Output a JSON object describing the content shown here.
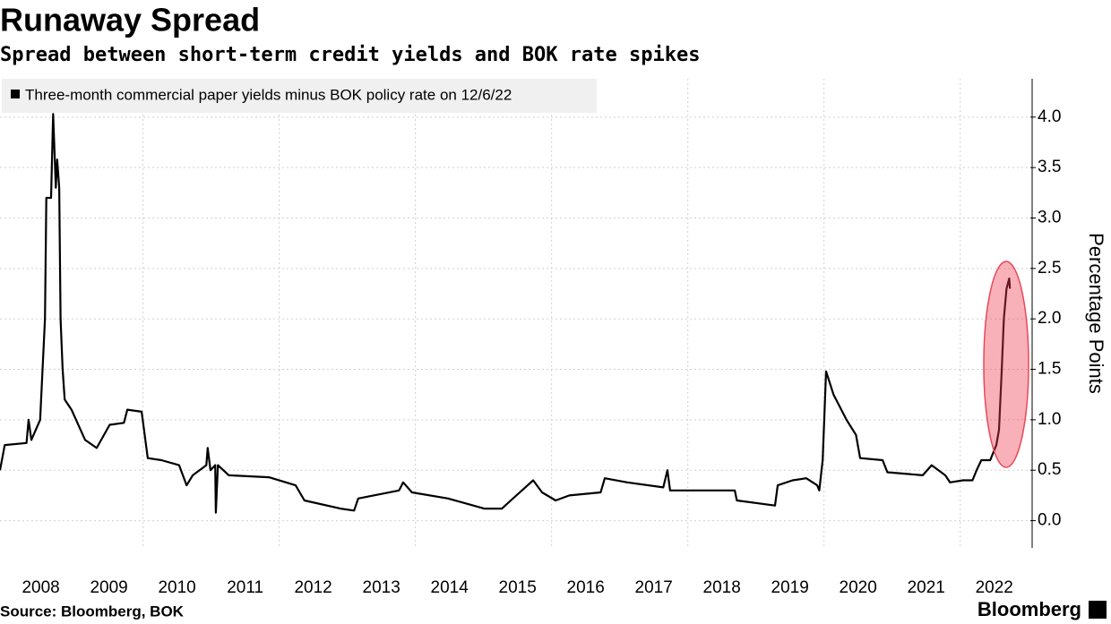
{
  "chart_data": {
    "type": "line",
    "title": "Runaway Spread",
    "subtitle": "Spread between short-term credit yields and BOK rate spikes",
    "y_axis_label": "Percentage Points",
    "source": "Source: Bloomberg, BOK",
    "brand": "Bloomberg",
    "x": [
      2007.9,
      2007.97,
      2008.29,
      2008.32,
      2008.36,
      2008.49,
      2008.56,
      2008.58,
      2008.65,
      2008.68,
      2008.72,
      2008.74,
      2008.77,
      2008.79,
      2008.82,
      2008.85,
      2008.95,
      2009.15,
      2009.32,
      2009.51,
      2009.72,
      2009.77,
      2009.98,
      2010.07,
      2010.27,
      2010.53,
      2010.64,
      2010.73,
      2010.93,
      2010.95,
      2010.99,
      2011.06,
      2011.07,
      2011.1,
      2011.26,
      2011.85,
      2012.24,
      2012.37,
      2012.9,
      2013.1,
      2013.16,
      2013.76,
      2013.82,
      2013.95,
      2014.48,
      2015.01,
      2015.27,
      2015.4,
      2015.73,
      2015.86,
      2016.06,
      2016.26,
      2016.72,
      2016.78,
      2017.11,
      2017.64,
      2017.7,
      2017.74,
      2018.69,
      2018.72,
      2019.28,
      2019.32,
      2019.54,
      2019.74,
      2019.9,
      2019.93,
      2019.98,
      2020.03,
      2020.14,
      2020.33,
      2020.47,
      2020.53,
      2020.86,
      2020.93,
      2021.45,
      2021.58,
      2021.78,
      2021.85,
      2022.04,
      2022.18,
      2022.24,
      2022.31,
      2022.44,
      2022.53,
      2022.57,
      2022.61,
      2022.64,
      2022.68,
      2022.72,
      2022.73
    ],
    "series": [
      {
        "name": "Three-month commercial paper yields minus BOK policy rate on 12/6/22",
        "color": "#000000",
        "values": [
          0.5,
          0.75,
          0.77,
          1.0,
          0.8,
          1.0,
          2.0,
          3.2,
          3.2,
          4.03,
          3.3,
          3.58,
          3.3,
          2.0,
          1.5,
          1.2,
          1.1,
          0.8,
          0.72,
          0.95,
          0.97,
          1.1,
          1.08,
          0.62,
          0.6,
          0.55,
          0.35,
          0.45,
          0.55,
          0.72,
          0.5,
          0.55,
          0.08,
          0.55,
          0.45,
          0.43,
          0.35,
          0.2,
          0.12,
          0.1,
          0.22,
          0.3,
          0.38,
          0.28,
          0.22,
          0.12,
          0.12,
          0.2,
          0.4,
          0.28,
          0.2,
          0.25,
          0.28,
          0.42,
          0.38,
          0.33,
          0.5,
          0.3,
          0.3,
          0.2,
          0.15,
          0.35,
          0.4,
          0.42,
          0.35,
          0.3,
          0.6,
          1.48,
          1.25,
          1.0,
          0.85,
          0.62,
          0.6,
          0.48,
          0.45,
          0.55,
          0.45,
          0.38,
          0.4,
          0.4,
          0.5,
          0.6,
          0.6,
          0.75,
          0.9,
          1.5,
          2.0,
          2.3,
          2.4,
          2.3
        ]
      }
    ],
    "xlim": [
      2007.9,
      2023.03
    ],
    "xticks": [
      2008,
      2009,
      2010,
      2011,
      2012,
      2013,
      2014,
      2015,
      2016,
      2017,
      2018,
      2019,
      2020,
      2021,
      2022
    ],
    "ylim": [
      -0.27,
      4.38
    ],
    "yticks": [
      {
        "value": 0,
        "label": "0.0"
      },
      {
        "value": 0.5,
        "label": "0.5"
      },
      {
        "value": 1,
        "label": "1.0"
      },
      {
        "value": 1.5,
        "label": "1.5"
      },
      {
        "value": 2,
        "label": "2.0"
      },
      {
        "value": 2.5,
        "label": "2.5"
      },
      {
        "value": 3,
        "label": "3.0"
      },
      {
        "value": 3.5,
        "label": "3.5"
      },
      {
        "value": 4,
        "label": "4.0"
      }
    ],
    "grid": true
  }
}
